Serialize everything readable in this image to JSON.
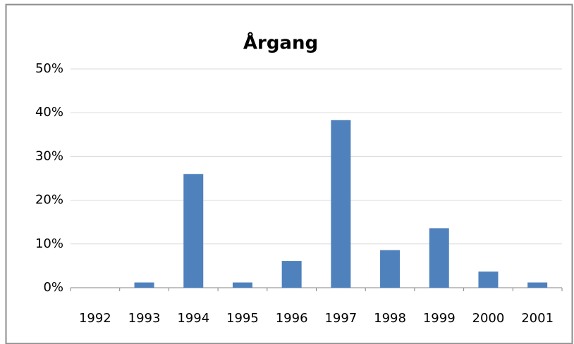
{
  "chart_data": {
    "type": "bar",
    "title": "Årgang",
    "categories": [
      "1992",
      "1993",
      "1994",
      "1995",
      "1996",
      "1997",
      "1998",
      "1999",
      "2000",
      "2001"
    ],
    "values": [
      0,
      1.2,
      26,
      1.2,
      6.1,
      38.3,
      8.6,
      13.6,
      3.7,
      1.2
    ],
    "color": "#4f81bd",
    "ylim": [
      0,
      50
    ],
    "yticks": [
      {
        "value": 0,
        "label": "0%"
      },
      {
        "value": 10,
        "label": "10%"
      },
      {
        "value": 20,
        "label": "20%"
      },
      {
        "value": 30,
        "label": "30%"
      },
      {
        "value": 40,
        "label": "40%"
      },
      {
        "value": 50,
        "label": "50%"
      }
    ],
    "grid": true
  }
}
